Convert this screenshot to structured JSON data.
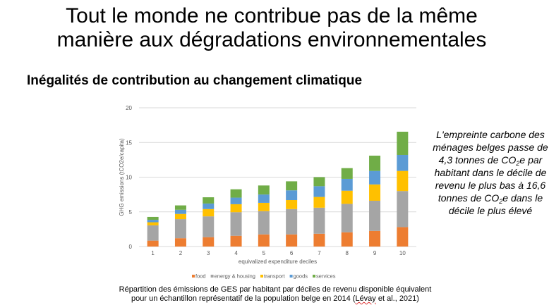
{
  "slide": {
    "title_line1": "Tout le monde ne contribue pas de la même",
    "title_line2": "manière aux dégradations environnementales",
    "subtitle": "Inégalités de contribution au changement climatique",
    "note": {
      "part1": "L'empreinte carbone des ménages belges passe de 4,3 tonnes de CO",
      "sub1": "2",
      "part2": "e par habitant dans le décile de revenu le plus bas à 16,6 tonnes de CO",
      "sub2": "2",
      "part3": "e dans le décile le plus élevé"
    },
    "caption_line1": "Répartition des émissions de GES par habitant par déciles de revenu disponible équivalent",
    "caption_line2a": "pour un échantillon représentatif de la population belge en 2014 (",
    "caption_line2b": "Lévay",
    "caption_line2c": " et al., 2021)"
  },
  "chart_data": {
    "type": "bar",
    "stacked": true,
    "title": "",
    "xlabel": "equivalized expenditure deciles",
    "ylabel": "GHG emissions (tCO2e/capita)",
    "ylim": [
      0,
      20
    ],
    "yticks": [
      "0",
      "5",
      "10",
      "15",
      "20"
    ],
    "grid": true,
    "legend_position": "bottom",
    "categories": [
      "1",
      "2",
      "3",
      "4",
      "5",
      "6",
      "7",
      "8",
      "9",
      "10"
    ],
    "series": [
      {
        "name": "food",
        "color": "#ED7D31",
        "values": [
          0.85,
          1.2,
          1.35,
          1.55,
          1.75,
          1.75,
          1.85,
          2.05,
          2.25,
          2.8
        ]
      },
      {
        "name": "energy & housing",
        "color": "#A5A5A5",
        "values": [
          2.2,
          2.75,
          3.0,
          3.4,
          3.35,
          3.65,
          3.75,
          4.1,
          4.35,
          5.2
        ]
      },
      {
        "name": "transport",
        "color": "#FFC000",
        "values": [
          0.45,
          0.75,
          1.05,
          1.15,
          1.2,
          1.3,
          1.55,
          1.9,
          2.35,
          2.9
        ]
      },
      {
        "name": "goods",
        "color": "#5B9BD5",
        "values": [
          0.35,
          0.6,
          0.8,
          0.95,
          1.2,
          1.4,
          1.55,
          1.7,
          1.95,
          2.3
        ]
      },
      {
        "name": "services",
        "color": "#70AD47",
        "values": [
          0.42,
          0.63,
          0.9,
          1.2,
          1.3,
          1.3,
          1.3,
          1.55,
          2.2,
          3.35
        ]
      }
    ]
  }
}
